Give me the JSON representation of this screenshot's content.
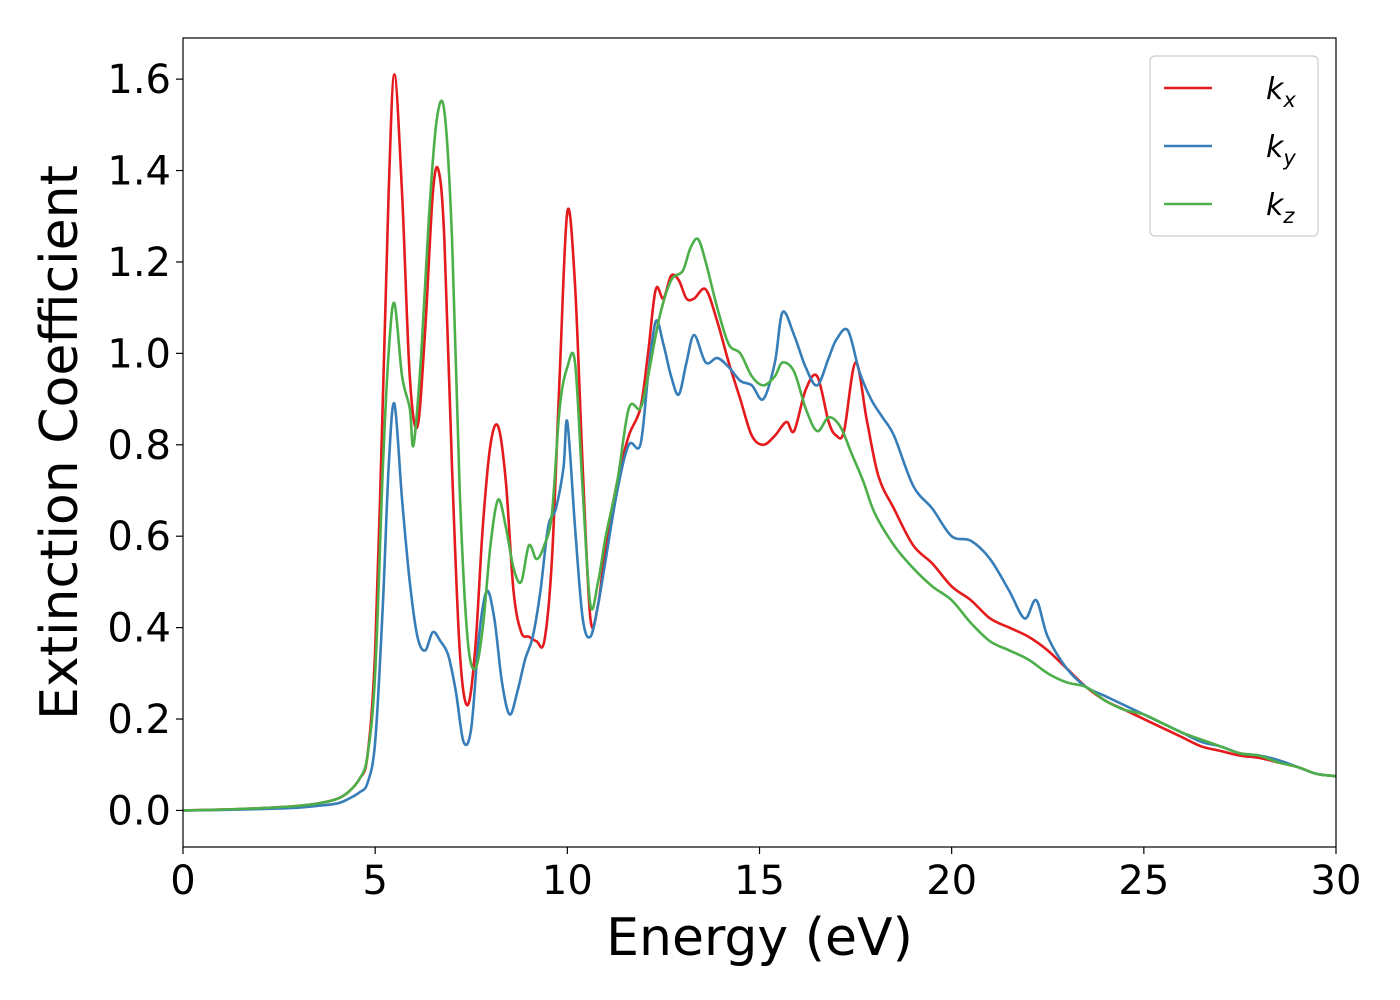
{
  "chart_data": {
    "type": "line",
    "xlabel": "Energy (eV)",
    "ylabel": "Extinction Coefficient",
    "xlim": [
      0,
      30
    ],
    "ylim": [
      -0.08,
      1.69
    ],
    "xticks": [
      0,
      5,
      10,
      15,
      20,
      25,
      30
    ],
    "xtick_labels": [
      "0",
      "5",
      "10",
      "15",
      "20",
      "25",
      "30"
    ],
    "yticks": [
      0.0,
      0.2,
      0.4,
      0.6,
      0.8,
      1.0,
      1.2,
      1.4,
      1.6
    ],
    "ytick_labels": [
      "0.0",
      "0.2",
      "0.4",
      "0.6",
      "0.8",
      "1.0",
      "1.2",
      "1.4",
      "1.6"
    ],
    "grid": false,
    "legend_position": "top-right",
    "series": [
      {
        "name": "k_x",
        "legend_base": "k",
        "legend_sub": "x",
        "color": "#e41a1c",
        "x": [
          0,
          1,
          2,
          3,
          3.5,
          4,
          4.3,
          4.6,
          4.8,
          5.0,
          5.2,
          5.35,
          5.5,
          5.7,
          5.9,
          6.1,
          6.3,
          6.5,
          6.65,
          6.8,
          7.0,
          7.2,
          7.4,
          7.6,
          7.8,
          8.0,
          8.2,
          8.4,
          8.6,
          8.8,
          9.0,
          9.2,
          9.4,
          9.6,
          9.8,
          10.0,
          10.2,
          10.4,
          10.6,
          10.8,
          11.0,
          11.3,
          11.6,
          11.9,
          12.1,
          12.3,
          12.5,
          12.7,
          12.9,
          13.1,
          13.3,
          13.6,
          13.9,
          14.2,
          14.5,
          14.8,
          15.1,
          15.4,
          15.7,
          15.9,
          16.2,
          16.5,
          16.8,
          17.0,
          17.2,
          17.5,
          17.8,
          18.1,
          18.5,
          19.0,
          19.5,
          20.0,
          20.5,
          21.0,
          21.5,
          22.0,
          22.5,
          23.0,
          23.5,
          24.0,
          24.5,
          25.0,
          25.5,
          26.0,
          26.5,
          27.0,
          27.5,
          28.0,
          28.5,
          29.0,
          29.5,
          30.0
        ],
        "y": [
          0.0,
          0.002,
          0.005,
          0.01,
          0.015,
          0.025,
          0.04,
          0.07,
          0.12,
          0.35,
          0.9,
          1.35,
          1.61,
          1.35,
          0.95,
          0.84,
          1.05,
          1.35,
          1.4,
          1.25,
          0.75,
          0.35,
          0.23,
          0.35,
          0.62,
          0.8,
          0.84,
          0.72,
          0.48,
          0.39,
          0.38,
          0.37,
          0.37,
          0.55,
          0.95,
          1.31,
          1.15,
          0.75,
          0.42,
          0.45,
          0.58,
          0.72,
          0.82,
          0.88,
          1.0,
          1.14,
          1.12,
          1.17,
          1.16,
          1.12,
          1.12,
          1.14,
          1.07,
          0.98,
          0.9,
          0.82,
          0.8,
          0.82,
          0.85,
          0.83,
          0.92,
          0.95,
          0.85,
          0.82,
          0.83,
          0.98,
          0.85,
          0.73,
          0.66,
          0.58,
          0.54,
          0.49,
          0.46,
          0.42,
          0.4,
          0.38,
          0.35,
          0.31,
          0.27,
          0.24,
          0.22,
          0.2,
          0.18,
          0.16,
          0.14,
          0.13,
          0.12,
          0.115,
          0.105,
          0.095,
          0.08,
          0.075
        ]
      },
      {
        "name": "k_y",
        "legend_base": "k",
        "legend_sub": "y",
        "color": "#377eb8",
        "x": [
          0,
          1,
          2,
          3,
          3.5,
          4,
          4.3,
          4.6,
          4.8,
          5.0,
          5.2,
          5.35,
          5.5,
          5.7,
          5.9,
          6.1,
          6.3,
          6.5,
          6.7,
          6.9,
          7.1,
          7.3,
          7.5,
          7.7,
          7.9,
          8.1,
          8.3,
          8.5,
          8.7,
          8.9,
          9.1,
          9.3,
          9.5,
          9.7,
          9.9,
          10.0,
          10.2,
          10.4,
          10.6,
          10.8,
          11.0,
          11.3,
          11.6,
          11.9,
          12.1,
          12.3,
          12.5,
          12.7,
          12.9,
          13.1,
          13.3,
          13.6,
          13.9,
          14.2,
          14.5,
          14.8,
          15.1,
          15.4,
          15.6,
          15.9,
          16.2,
          16.5,
          16.8,
          17.0,
          17.3,
          17.6,
          17.9,
          18.2,
          18.5,
          19.0,
          19.5,
          20.0,
          20.5,
          21.0,
          21.5,
          21.9,
          22.2,
          22.5,
          23.0,
          23.5,
          24.0,
          24.5,
          25.0,
          25.5,
          26.0,
          26.5,
          27.0,
          27.5,
          28.0,
          28.5,
          29.0,
          29.5,
          30.0
        ],
        "y": [
          0.0,
          0.001,
          0.003,
          0.006,
          0.01,
          0.015,
          0.025,
          0.04,
          0.06,
          0.15,
          0.45,
          0.75,
          0.89,
          0.68,
          0.5,
          0.38,
          0.35,
          0.39,
          0.37,
          0.34,
          0.26,
          0.15,
          0.18,
          0.38,
          0.48,
          0.42,
          0.28,
          0.21,
          0.26,
          0.33,
          0.38,
          0.48,
          0.62,
          0.66,
          0.75,
          0.85,
          0.62,
          0.42,
          0.38,
          0.45,
          0.55,
          0.7,
          0.8,
          0.8,
          0.95,
          1.07,
          1.02,
          0.95,
          0.91,
          0.98,
          1.04,
          0.98,
          0.99,
          0.97,
          0.94,
          0.93,
          0.9,
          0.98,
          1.09,
          1.04,
          0.97,
          0.93,
          0.99,
          1.03,
          1.05,
          0.96,
          0.9,
          0.86,
          0.82,
          0.71,
          0.66,
          0.6,
          0.59,
          0.55,
          0.48,
          0.42,
          0.46,
          0.38,
          0.31,
          0.27,
          0.25,
          0.23,
          0.21,
          0.19,
          0.17,
          0.15,
          0.14,
          0.125,
          0.12,
          0.11,
          0.095,
          0.08,
          0.075
        ]
      },
      {
        "name": "k_z",
        "legend_base": "k",
        "legend_sub": "z",
        "color": "#4daf4a",
        "x": [
          0,
          1,
          2,
          3,
          3.5,
          4,
          4.3,
          4.6,
          4.8,
          5.0,
          5.2,
          5.35,
          5.5,
          5.7,
          5.9,
          6.0,
          6.2,
          6.4,
          6.6,
          6.8,
          7.0,
          7.2,
          7.4,
          7.6,
          7.8,
          8.0,
          8.2,
          8.4,
          8.6,
          8.8,
          9.0,
          9.2,
          9.4,
          9.6,
          9.8,
          10.0,
          10.2,
          10.4,
          10.6,
          10.8,
          11.0,
          11.3,
          11.6,
          11.9,
          12.1,
          12.4,
          12.7,
          13.0,
          13.2,
          13.4,
          13.6,
          13.9,
          14.2,
          14.5,
          14.8,
          15.1,
          15.4,
          15.6,
          15.9,
          16.2,
          16.5,
          16.8,
          17.1,
          17.4,
          17.7,
          18.0,
          18.5,
          19.0,
          19.5,
          20.0,
          20.5,
          21.0,
          21.5,
          22.0,
          22.5,
          23.0,
          23.5,
          24.0,
          24.5,
          25.0,
          25.5,
          26.0,
          26.5,
          27.0,
          27.5,
          28.0,
          28.5,
          29.0,
          29.5,
          30.0
        ],
        "y": [
          0.0,
          0.002,
          0.005,
          0.01,
          0.015,
          0.025,
          0.04,
          0.07,
          0.12,
          0.3,
          0.75,
          1.0,
          1.11,
          0.95,
          0.88,
          0.8,
          1.0,
          1.3,
          1.51,
          1.53,
          1.25,
          0.7,
          0.38,
          0.31,
          0.4,
          0.58,
          0.68,
          0.62,
          0.53,
          0.5,
          0.58,
          0.55,
          0.58,
          0.65,
          0.88,
          0.97,
          0.98,
          0.7,
          0.45,
          0.5,
          0.6,
          0.72,
          0.88,
          0.88,
          0.95,
          1.08,
          1.16,
          1.18,
          1.23,
          1.25,
          1.2,
          1.1,
          1.02,
          1.0,
          0.95,
          0.93,
          0.95,
          0.98,
          0.96,
          0.88,
          0.83,
          0.86,
          0.84,
          0.78,
          0.72,
          0.65,
          0.58,
          0.53,
          0.49,
          0.46,
          0.41,
          0.37,
          0.35,
          0.33,
          0.3,
          0.28,
          0.27,
          0.24,
          0.22,
          0.21,
          0.19,
          0.17,
          0.155,
          0.14,
          0.125,
          0.12,
          0.105,
          0.095,
          0.08,
          0.075
        ]
      }
    ]
  }
}
